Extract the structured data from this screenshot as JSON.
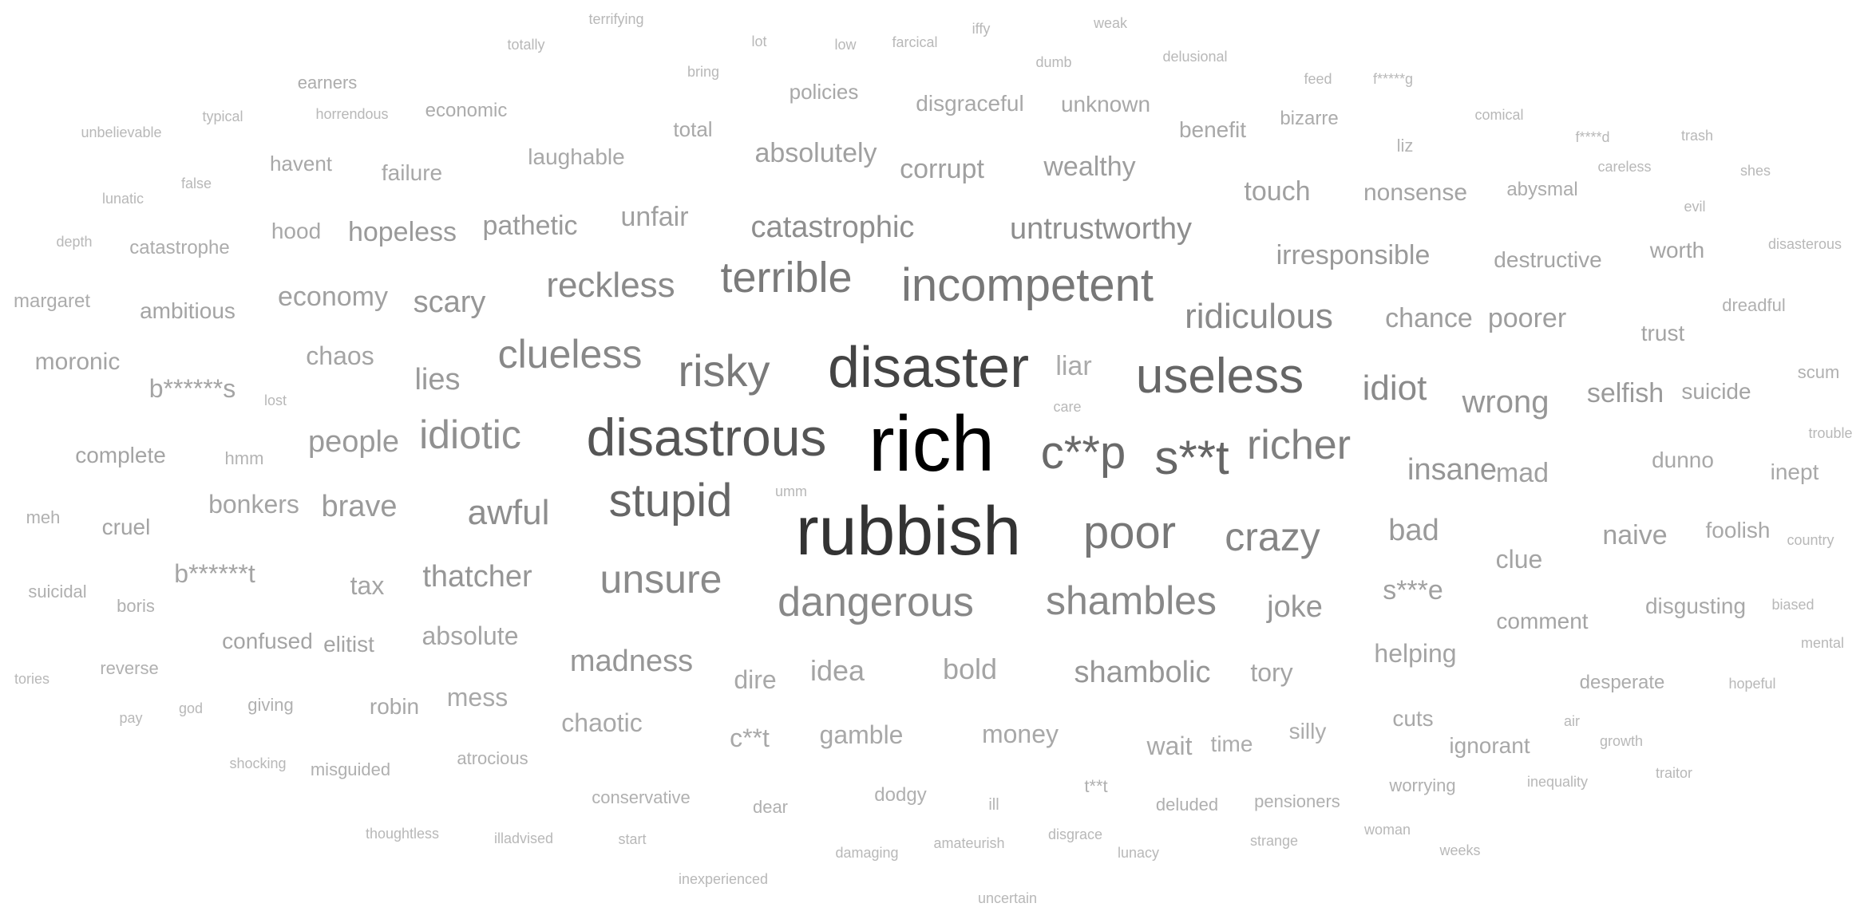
{
  "words": [
    {
      "text": "rich",
      "shade": "#000000"
    },
    {
      "text": "rubbish",
      "shade": "#333333"
    },
    {
      "text": "disaster",
      "shade": "#444444"
    },
    {
      "text": "disastrous",
      "shade": "#555555"
    },
    {
      "text": "useless",
      "shade": "#666666"
    },
    {
      "text": "s**t",
      "shade": "#666666"
    },
    {
      "text": "c**p",
      "shade": "#6a6a6a"
    },
    {
      "text": "stupid",
      "shade": "#666666"
    },
    {
      "text": "poor",
      "shade": "#777777"
    },
    {
      "text": "incompetent",
      "shade": "#777777"
    },
    {
      "text": "terrible",
      "shade": "#7a7a7a"
    },
    {
      "text": "risky",
      "shade": "#7a7a7a"
    },
    {
      "text": "richer",
      "shade": "#808080"
    },
    {
      "text": "crazy",
      "shade": "#858585"
    },
    {
      "text": "dangerous",
      "shade": "#888888"
    },
    {
      "text": "clueless",
      "shade": "#888888"
    },
    {
      "text": "shambles",
      "shade": "#888888"
    },
    {
      "text": "unsure",
      "shade": "#8a8a8a"
    },
    {
      "text": "reckless",
      "shade": "#8a8a8a"
    },
    {
      "text": "idiot",
      "shade": "#8a8a8a"
    },
    {
      "text": "ridiculous",
      "shade": "#8a8a8a"
    },
    {
      "text": "idiotic",
      "shade": "#909090"
    },
    {
      "text": "catastrophic",
      "shade": "#8e8e8e"
    },
    {
      "text": "untrustworthy",
      "shade": "#8e8e8e"
    },
    {
      "text": "awful",
      "shade": "#8e8e8e"
    },
    {
      "text": "wrong",
      "shade": "#969696"
    },
    {
      "text": "insane",
      "shade": "#969696"
    },
    {
      "text": "selfish",
      "shade": "#9a9a9a"
    },
    {
      "text": "scary",
      "shade": "#969696"
    },
    {
      "text": "thatcher",
      "shade": "#969696"
    },
    {
      "text": "shambolic",
      "shade": "#969696"
    },
    {
      "text": "madness",
      "shade": "#969696"
    },
    {
      "text": "joke",
      "shade": "#969696"
    },
    {
      "text": "bad",
      "shade": "#9a9a9a"
    },
    {
      "text": "lies",
      "shade": "#9a9a9a"
    },
    {
      "text": "brave",
      "shade": "#9a9a9a"
    },
    {
      "text": "people",
      "shade": "#9a9a9a"
    },
    {
      "text": "pathetic",
      "shade": "#9a9a9a"
    },
    {
      "text": "hopeless",
      "shade": "#9a9a9a"
    },
    {
      "text": "irresponsible",
      "shade": "#9a9a9a"
    },
    {
      "text": "chance",
      "shade": "#9e9e9e"
    },
    {
      "text": "poorer",
      "shade": "#9e9e9e"
    },
    {
      "text": "liar",
      "shade": "#aaaaaa"
    },
    {
      "text": "mad",
      "shade": "#a0a0a0"
    },
    {
      "text": "naive",
      "shade": "#a0a0a0"
    },
    {
      "text": "s***e",
      "shade": "#a0a0a0"
    },
    {
      "text": "wealthy",
      "shade": "#9e9e9e"
    },
    {
      "text": "economy",
      "shade": "#a0a0a0"
    },
    {
      "text": "unfair",
      "shade": "#a0a0a0"
    },
    {
      "text": "absolutely",
      "shade": "#a0a0a0"
    },
    {
      "text": "corrupt",
      "shade": "#a0a0a0"
    },
    {
      "text": "touch",
      "shade": "#a0a0a0"
    },
    {
      "text": "nonsense",
      "shade": "#a4a4a4"
    },
    {
      "text": "destructive",
      "shade": "#a4a4a4"
    },
    {
      "text": "worth",
      "shade": "#a4a4a4"
    },
    {
      "text": "suicide",
      "shade": "#a4a4a4"
    },
    {
      "text": "trust",
      "shade": "#a4a4a4"
    },
    {
      "text": "chaos",
      "shade": "#a4a4a4"
    },
    {
      "text": "moronic",
      "shade": "#a4a4a4"
    },
    {
      "text": "b******s",
      "shade": "#a4a4a4"
    },
    {
      "text": "ambitious",
      "shade": "#a4a4a4"
    },
    {
      "text": "bonkers",
      "shade": "#a4a4a4"
    },
    {
      "text": "complete",
      "shade": "#a4a4a4"
    },
    {
      "text": "cruel",
      "shade": "#a4a4a4"
    },
    {
      "text": "b******t",
      "shade": "#a4a4a4"
    },
    {
      "text": "tax",
      "shade": "#a4a4a4"
    },
    {
      "text": "absolute",
      "shade": "#a4a4a4"
    },
    {
      "text": "confused",
      "shade": "#a4a4a4"
    },
    {
      "text": "elitist",
      "shade": "#a4a4a4"
    },
    {
      "text": "idea",
      "shade": "#a4a4a4"
    },
    {
      "text": "bold",
      "shade": "#a4a4a4"
    },
    {
      "text": "tory",
      "shade": "#a4a4a4"
    },
    {
      "text": "helping",
      "shade": "#a4a4a4"
    },
    {
      "text": "clue",
      "shade": "#a4a4a4"
    },
    {
      "text": "comment",
      "shade": "#a4a4a4"
    },
    {
      "text": "foolish",
      "shade": "#a8a8a8"
    },
    {
      "text": "disgusting",
      "shade": "#a8a8a8"
    },
    {
      "text": "dunno",
      "shade": "#a8a8a8"
    },
    {
      "text": "inept",
      "shade": "#a8a8a8"
    },
    {
      "text": "dire",
      "shade": "#a8a8a8"
    },
    {
      "text": "mess",
      "shade": "#a8a8a8"
    },
    {
      "text": "chaotic",
      "shade": "#a8a8a8"
    },
    {
      "text": "robin",
      "shade": "#a8a8a8"
    },
    {
      "text": "c**t",
      "shade": "#a8a8a8"
    },
    {
      "text": "gamble",
      "shade": "#a8a8a8"
    },
    {
      "text": "money",
      "shade": "#a8a8a8"
    },
    {
      "text": "wait",
      "shade": "#a8a8a8"
    },
    {
      "text": "time",
      "shade": "#acacac"
    },
    {
      "text": "silly",
      "shade": "#acacac"
    },
    {
      "text": "cuts",
      "shade": "#a8a8a8"
    },
    {
      "text": "ignorant",
      "shade": "#a8a8a8"
    },
    {
      "text": "desperate",
      "shade": "#acacac"
    },
    {
      "text": "failure",
      "shade": "#a8a8a8"
    },
    {
      "text": "hood",
      "shade": "#a8a8a8"
    },
    {
      "text": "havent",
      "shade": "#a8a8a8"
    },
    {
      "text": "laughable",
      "shade": "#a8a8a8"
    },
    {
      "text": "total",
      "shade": "#a8a8a8"
    },
    {
      "text": "policies",
      "shade": "#a8a8a8"
    },
    {
      "text": "disgraceful",
      "shade": "#a8a8a8"
    },
    {
      "text": "unknown",
      "shade": "#a8a8a8"
    },
    {
      "text": "benefit",
      "shade": "#a8a8a8"
    },
    {
      "text": "bizarre",
      "shade": "#acacac"
    },
    {
      "text": "abysmal",
      "shade": "#acacac"
    },
    {
      "text": "catastrophe",
      "shade": "#acacac"
    },
    {
      "text": "margaret",
      "shade": "#acacac"
    },
    {
      "text": "economic",
      "shade": "#acacac"
    },
    {
      "text": "earners",
      "shade": "#acacac"
    },
    {
      "text": "dreadful",
      "shade": "#b0b0b0"
    },
    {
      "text": "scum",
      "shade": "#b0b0b0"
    },
    {
      "text": "meh",
      "shade": "#b0b0b0"
    },
    {
      "text": "suicidal",
      "shade": "#b0b0b0"
    },
    {
      "text": "boris",
      "shade": "#b0b0b0"
    },
    {
      "text": "reverse",
      "shade": "#b0b0b0"
    },
    {
      "text": "giving",
      "shade": "#b0b0b0"
    },
    {
      "text": "misguided",
      "shade": "#b0b0b0"
    },
    {
      "text": "atrocious",
      "shade": "#b0b0b0"
    },
    {
      "text": "conservative",
      "shade": "#b0b0b0"
    },
    {
      "text": "dear",
      "shade": "#b0b0b0"
    },
    {
      "text": "dodgy",
      "shade": "#b0b0b0"
    },
    {
      "text": "t**t",
      "shade": "#b0b0b0"
    },
    {
      "text": "deluded",
      "shade": "#b0b0b0"
    },
    {
      "text": "pensioners",
      "shade": "#b0b0b0"
    },
    {
      "text": "worrying",
      "shade": "#b0b0b0"
    },
    {
      "text": "liz",
      "shade": "#b4b4b4"
    },
    {
      "text": "hmm",
      "shade": "#b4b4b4"
    },
    {
      "text": "ill",
      "shade": "#b4b4b4"
    },
    {
      "text": "terrifying",
      "shade": "#b8b8b8"
    },
    {
      "text": "totally",
      "shade": "#b8b8b8"
    },
    {
      "text": "lot",
      "shade": "#b8b8b8"
    },
    {
      "text": "low",
      "shade": "#b8b8b8"
    },
    {
      "text": "farcical",
      "shade": "#b8b8b8"
    },
    {
      "text": "iffy",
      "shade": "#b8b8b8"
    },
    {
      "text": "weak",
      "shade": "#b8b8b8"
    },
    {
      "text": "dumb",
      "shade": "#b8b8b8"
    },
    {
      "text": "delusional",
      "shade": "#b8b8b8"
    },
    {
      "text": "bring",
      "shade": "#b8b8b8"
    },
    {
      "text": "feed",
      "shade": "#b8b8b8"
    },
    {
      "text": "f*****g",
      "shade": "#b8b8b8"
    },
    {
      "text": "unbelievable",
      "shade": "#b8b8b8"
    },
    {
      "text": "typical",
      "shade": "#b8b8b8"
    },
    {
      "text": "horrendous",
      "shade": "#b8b8b8"
    },
    {
      "text": "comical",
      "shade": "#b8b8b8"
    },
    {
      "text": "f****d",
      "shade": "#b8b8b8"
    },
    {
      "text": "trash",
      "shade": "#b8b8b8"
    },
    {
      "text": "careless",
      "shade": "#b8b8b8"
    },
    {
      "text": "shes",
      "shade": "#b8b8b8"
    },
    {
      "text": "lunatic",
      "shade": "#b8b8b8"
    },
    {
      "text": "false",
      "shade": "#b8b8b8"
    },
    {
      "text": "evil",
      "shade": "#b8b8b8"
    },
    {
      "text": "depth",
      "shade": "#b8b8b8"
    },
    {
      "text": "disasterous",
      "shade": "#b8b8b8"
    },
    {
      "text": "lost",
      "shade": "#b8b8b8"
    },
    {
      "text": "care",
      "shade": "#b8b8b8"
    },
    {
      "text": "trouble",
      "shade": "#b8b8b8"
    },
    {
      "text": "umm",
      "shade": "#b8b8b8"
    },
    {
      "text": "country",
      "shade": "#b8b8b8"
    },
    {
      "text": "biased",
      "shade": "#b8b8b8"
    },
    {
      "text": "mental",
      "shade": "#b8b8b8"
    },
    {
      "text": "tories",
      "shade": "#b8b8b8"
    },
    {
      "text": "hopeful",
      "shade": "#b8b8b8"
    },
    {
      "text": "pay",
      "shade": "#b8b8b8"
    },
    {
      "text": "god",
      "shade": "#b8b8b8"
    },
    {
      "text": "air",
      "shade": "#b8b8b8"
    },
    {
      "text": "growth",
      "shade": "#b8b8b8"
    },
    {
      "text": "shocking",
      "shade": "#b8b8b8"
    },
    {
      "text": "inequality",
      "shade": "#b8b8b8"
    },
    {
      "text": "traitor",
      "shade": "#b8b8b8"
    },
    {
      "text": "thoughtless",
      "shade": "#b8b8b8"
    },
    {
      "text": "illadvised",
      "shade": "#b8b8b8"
    },
    {
      "text": "start",
      "shade": "#b8b8b8"
    },
    {
      "text": "amateurish",
      "shade": "#b8b8b8"
    },
    {
      "text": "disgrace",
      "shade": "#b8b8b8"
    },
    {
      "text": "strange",
      "shade": "#b8b8b8"
    },
    {
      "text": "woman",
      "shade": "#b8b8b8"
    },
    {
      "text": "weeks",
      "shade": "#b8b8b8"
    },
    {
      "text": "damaging",
      "shade": "#b8b8b8"
    },
    {
      "text": "lunacy",
      "shade": "#b8b8b8"
    },
    {
      "text": "inexperienced",
      "shade": "#b8b8b8"
    },
    {
      "text": "uncertain",
      "shade": "#b8b8b8"
    }
  ]
}
